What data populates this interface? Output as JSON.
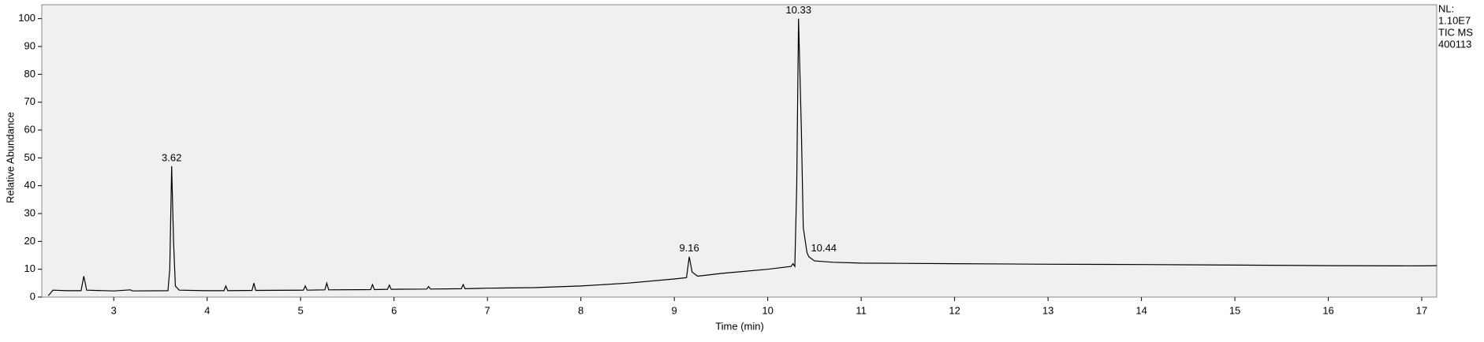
{
  "chart_data": {
    "type": "line",
    "y_axis_label": "Relative Abundance",
    "x_axis_label": "Time (min)",
    "info_lines": [
      "NL:",
      "1.10E7",
      "TIC  MS",
      "400113"
    ],
    "color": "#000000",
    "x": [
      2.3,
      2.35,
      2.5,
      2.65,
      2.68,
      2.71,
      3.0,
      3.18,
      3.2,
      3.58,
      3.6,
      3.62,
      3.64,
      3.66,
      3.7,
      4.0,
      4.18,
      4.2,
      4.22,
      4.48,
      4.5,
      4.52,
      5.03,
      5.05,
      5.07,
      5.26,
      5.28,
      5.3,
      5.75,
      5.77,
      5.79,
      5.93,
      5.95,
      5.97,
      6.35,
      6.37,
      6.39,
      6.72,
      6.74,
      6.76,
      6.9,
      7.0,
      7.5,
      8.0,
      8.5,
      9.0,
      9.13,
      9.16,
      9.19,
      9.25,
      9.5,
      10.0,
      10.25,
      10.27,
      10.29,
      10.31,
      10.33,
      10.36,
      10.38,
      10.42,
      10.44,
      10.5,
      10.7,
      11.0,
      12.0,
      13.0,
      14.0,
      15.0,
      16.0,
      17.0,
      17.16
    ],
    "values": [
      0.5,
      2.5,
      2.3,
      2.3,
      7.5,
      2.5,
      2.2,
      2.6,
      2.2,
      2.3,
      10,
      47,
      20,
      4,
      2.5,
      2.3,
      2.3,
      4,
      2.3,
      2.4,
      5,
      2.4,
      2.5,
      4,
      2.5,
      2.6,
      5,
      2.6,
      2.7,
      4.5,
      2.7,
      2.8,
      4.3,
      2.8,
      2.9,
      3.8,
      2.9,
      3.0,
      4.5,
      3.0,
      3.1,
      3.2,
      3.4,
      4,
      5,
      6.5,
      7,
      14.5,
      9,
      7.5,
      8.5,
      10,
      11,
      12,
      11,
      40,
      100,
      60,
      25,
      16,
      14.5,
      13,
      12.5,
      12.2,
      12,
      11.8,
      11.7,
      11.5,
      11.3,
      11.2,
      11.3
    ],
    "annotations": [
      {
        "text": "3.62",
        "x": 3.62,
        "y": 47
      },
      {
        "text": "9.16",
        "x": 9.16,
        "y": 14.5
      },
      {
        "text": "10.33",
        "x": 10.33,
        "y": 100
      },
      {
        "text": "10.44",
        "x": 10.6,
        "y": 14.5
      }
    ],
    "xlim": [
      2.23,
      17.16
    ],
    "ylim": [
      0,
      105
    ],
    "xticks": [
      3,
      4,
      5,
      6,
      7,
      8,
      9,
      10,
      11,
      12,
      13,
      14,
      15,
      16,
      17
    ],
    "yticks": [
      0,
      10,
      20,
      30,
      40,
      50,
      60,
      70,
      80,
      90,
      100
    ]
  }
}
